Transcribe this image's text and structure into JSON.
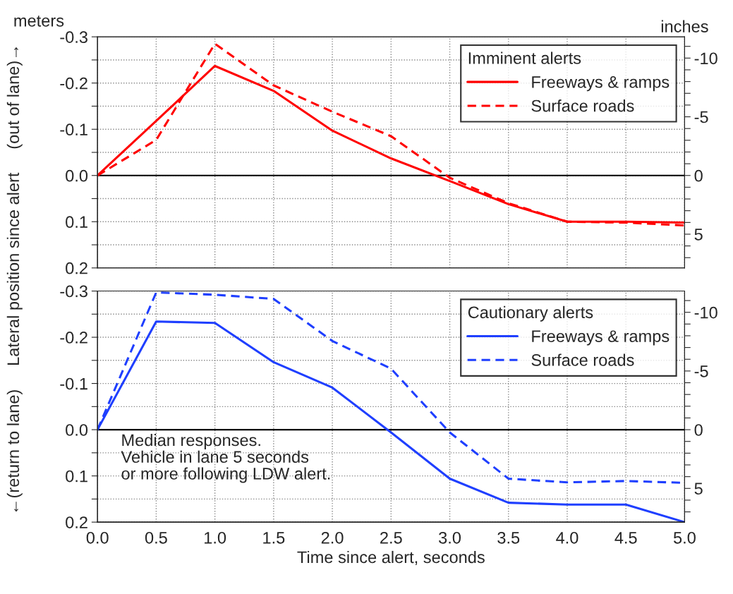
{
  "chart_data": [
    {
      "type": "line",
      "ylabel": "←(return to lane)     Lateral position since alert     (out of lane)→",
      "y2label": "inches",
      "legend_title": "Imminent alerts",
      "annotations": [
        "meters"
      ],
      "x": [
        0,
        0.5,
        1,
        1.5,
        2,
        2.5,
        3,
        3.5,
        4,
        4.5,
        5
      ],
      "series": [
        {
          "name": "Freeways & ramps",
          "color": "#ff0000",
          "line_style": "solid",
          "values": [
            0,
            -0.118,
            -0.237,
            -0.183,
            -0.097,
            -0.037,
            0.012,
            0.062,
            0.1,
            0.1,
            0.102
          ]
        },
        {
          "name": "Surface roads",
          "color": "#ff0000",
          "line_style": "dashed",
          "values": [
            0,
            -0.077,
            -0.285,
            -0.195,
            -0.138,
            -0.085,
            0.005,
            0.06,
            0.1,
            0.102,
            0.108
          ]
        }
      ],
      "xlim": [
        0,
        5
      ],
      "xticks": [
        0,
        0.5,
        1,
        1.5,
        2,
        2.5,
        3,
        3.5,
        4,
        4.5,
        5
      ],
      "ylim": [
        0.2,
        -0.3
      ],
      "yticks": [
        {
          "value": 0.2,
          "label": "0.2"
        },
        {
          "value": 0.15,
          "label": null
        },
        {
          "value": 0.1,
          "label": "0.1"
        },
        {
          "value": 0.05,
          "label": null
        },
        {
          "value": 0,
          "label": "0.0"
        },
        {
          "value": -0.05,
          "label": null
        },
        {
          "value": -0.1,
          "label": "-0.1"
        },
        {
          "value": -0.15,
          "label": null
        },
        {
          "value": -0.2,
          "label": "-0.2"
        },
        {
          "value": -0.25,
          "label": null
        },
        {
          "value": -0.3,
          "label": "-0.3"
        }
      ],
      "y2lim": [
        7.874,
        -11.811
      ],
      "y2ticks": [
        {
          "value": 7,
          "label": null
        },
        {
          "value": 6,
          "label": null
        },
        {
          "value": 5,
          "label": "5"
        },
        {
          "value": 4,
          "label": null
        },
        {
          "value": 3,
          "label": null
        },
        {
          "value": 2,
          "label": null
        },
        {
          "value": 1,
          "label": null
        },
        {
          "value": 0,
          "label": "0"
        },
        {
          "value": -1,
          "label": null
        },
        {
          "value": -2,
          "label": null
        },
        {
          "value": -3,
          "label": null
        },
        {
          "value": -4,
          "label": null
        },
        {
          "value": -5,
          "label": "-5"
        },
        {
          "value": -6,
          "label": null
        },
        {
          "value": -7,
          "label": null
        },
        {
          "value": -8,
          "label": null
        },
        {
          "value": -9,
          "label": null
        },
        {
          "value": -10,
          "label": "-10"
        },
        {
          "value": -11,
          "label": null
        }
      ],
      "ref_lines": [
        {
          "axis": "y",
          "value": 0,
          "color": "#000000"
        }
      ],
      "grid": true,
      "legend": "top right",
      "tick_labels": "y"
    },
    {
      "type": "line",
      "xlabel": "Time since alert, seconds",
      "legend_title": "Cautionary alerts",
      "annotations": [
        "Median responses.\nVehicle in lane 5 seconds\nor more following LDW alert."
      ],
      "x": [
        0,
        0.5,
        1,
        1.5,
        2,
        2.5,
        3,
        3.5,
        4,
        4.5,
        5
      ],
      "series": [
        {
          "name": "Freeways & ramps",
          "color": "#1f3fff",
          "line_style": "solid",
          "values": [
            0,
            -0.234,
            -0.231,
            -0.146,
            -0.091,
            0.006,
            0.106,
            0.158,
            0.162,
            0.162,
            0.2
          ]
        },
        {
          "name": "Surface roads",
          "color": "#1f3fff",
          "line_style": "dashed",
          "values": [
            0,
            -0.297,
            -0.292,
            -0.283,
            -0.192,
            -0.132,
            0.006,
            0.106,
            0.114,
            0.111,
            0.115
          ]
        }
      ],
      "xlim": [
        0,
        5
      ],
      "xticks": [
        {
          "value": 0,
          "label": "0.0"
        },
        {
          "value": 0.5,
          "label": "0.5"
        },
        {
          "value": 1,
          "label": "1.0"
        },
        {
          "value": 1.5,
          "label": "1.5"
        },
        {
          "value": 2,
          "label": "2.0"
        },
        {
          "value": 2.5,
          "label": "2.5"
        },
        {
          "value": 3,
          "label": "3.0"
        },
        {
          "value": 3.5,
          "label": "3.5"
        },
        {
          "value": 4,
          "label": "4.0"
        },
        {
          "value": 4.5,
          "label": "4.5"
        },
        {
          "value": 5,
          "label": "5.0"
        }
      ],
      "ylim": [
        0.2,
        -0.3
      ],
      "yticks": [
        {
          "value": 0.2,
          "label": "0.2"
        },
        {
          "value": 0.15,
          "label": null
        },
        {
          "value": 0.1,
          "label": "0.1"
        },
        {
          "value": 0.05,
          "label": null
        },
        {
          "value": 0,
          "label": "0.0"
        },
        {
          "value": -0.05,
          "label": null
        },
        {
          "value": -0.1,
          "label": "-0.1"
        },
        {
          "value": -0.15,
          "label": null
        },
        {
          "value": -0.2,
          "label": "-0.2"
        },
        {
          "value": -0.25,
          "label": null
        },
        {
          "value": -0.3,
          "label": "-0.3"
        }
      ],
      "y2lim": [
        7.874,
        -11.811
      ],
      "y2ticks": [
        {
          "value": 7,
          "label": null
        },
        {
          "value": 6,
          "label": null
        },
        {
          "value": 5,
          "label": "5"
        },
        {
          "value": 4,
          "label": null
        },
        {
          "value": 3,
          "label": null
        },
        {
          "value": 2,
          "label": null
        },
        {
          "value": 1,
          "label": null
        },
        {
          "value": 0,
          "label": "0"
        },
        {
          "value": -1,
          "label": null
        },
        {
          "value": -2,
          "label": null
        },
        {
          "value": -3,
          "label": null
        },
        {
          "value": -4,
          "label": null
        },
        {
          "value": -5,
          "label": "-5"
        },
        {
          "value": -6,
          "label": null
        },
        {
          "value": -7,
          "label": null
        },
        {
          "value": -8,
          "label": null
        },
        {
          "value": -9,
          "label": null
        },
        {
          "value": -10,
          "label": "-10"
        },
        {
          "value": -11,
          "label": null
        }
      ],
      "ref_lines": [
        {
          "axis": "y",
          "value": 0,
          "color": "#000000"
        }
      ],
      "grid": true,
      "legend": "top right"
    }
  ]
}
